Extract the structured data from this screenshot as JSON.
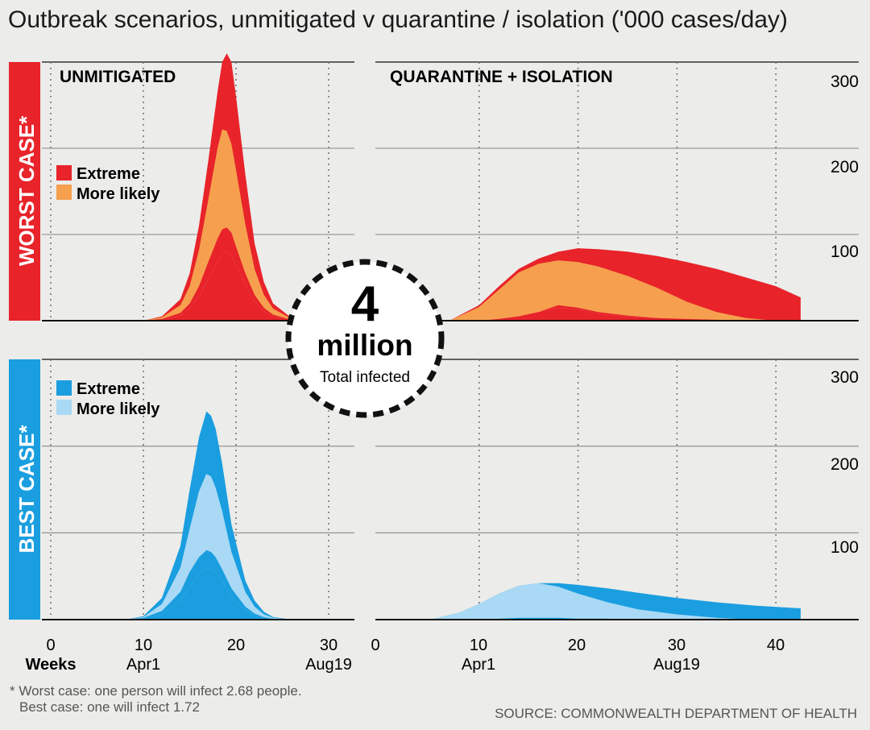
{
  "header": {
    "title": "Outbreak scenarios, unmitigated v quarantine / isolation ('000 cases/day)"
  },
  "rows": {
    "worst": {
      "label": "WORST CASE*",
      "color": "#e8232a"
    },
    "best": {
      "label": "BEST CASE*",
      "color": "#1a9ee0"
    }
  },
  "legend": {
    "worst": [
      {
        "label": "Extreme",
        "color": "#e8232a"
      },
      {
        "label": "More likely",
        "color": "#f6a04f"
      }
    ],
    "best": [
      {
        "label": "Extreme",
        "color": "#1a9ee0"
      },
      {
        "label": "More likely",
        "color": "#a9d9f4"
      }
    ]
  },
  "badge": {
    "number": "4",
    "unit": "million",
    "caption": "Total infected"
  },
  "axes": {
    "weeks_label": "Weeks",
    "left_x_ticks": [
      "0",
      "10",
      "20",
      "30"
    ],
    "right_x_ticks": [
      "0",
      "10",
      "20",
      "30",
      "40"
    ],
    "left_date_labels": [
      "Apr1",
      "Aug19"
    ],
    "right_date_labels": [
      "Apr1",
      "Aug19"
    ],
    "y_ticks": [
      "100",
      "200",
      "300"
    ]
  },
  "footnote": {
    "line1": "* Worst case: one person will infect 2.68 people.",
    "line2": "Best case: one will infect 1.72"
  },
  "source": "SOURCE: COMMONWEALTH DEPARTMENT OF HEALTH",
  "chart_data": [
    {
      "type": "area",
      "title": "UNMITIGATED",
      "row": "WORST CASE*",
      "xlabel": "Weeks",
      "ylim": [
        0,
        300
      ],
      "x": [
        10,
        12,
        14,
        15,
        16,
        17,
        18,
        18.5,
        19,
        19.5,
        20,
        21,
        22,
        23,
        24,
        26,
        28
      ],
      "series": [
        {
          "name": "Extreme",
          "upper": [
            0,
            5,
            25,
            55,
            110,
            185,
            265,
            300,
            310,
            300,
            260,
            170,
            90,
            45,
            20,
            3,
            0
          ],
          "lower": [
            0,
            1,
            6,
            14,
            28,
            48,
            68,
            78,
            80,
            76,
            64,
            42,
            22,
            11,
            5,
            1,
            0
          ]
        },
        {
          "name": "More likely",
          "upper": [
            0,
            4,
            18,
            40,
            82,
            140,
            200,
            222,
            220,
            205,
            175,
            112,
            60,
            30,
            14,
            2,
            0
          ],
          "lower": [
            0,
            2,
            9,
            20,
            40,
            68,
            95,
            106,
            108,
            102,
            86,
            55,
            30,
            15,
            7,
            1,
            0
          ]
        }
      ]
    },
    {
      "type": "area",
      "title": "QUARANTINE + ISOLATION",
      "row": "WORST CASE*",
      "xlabel": "Weeks",
      "ylim": [
        0,
        300
      ],
      "x": [
        7,
        10,
        12,
        14,
        16,
        18,
        20,
        22,
        25,
        28,
        31,
        34,
        37,
        40,
        42.5
      ],
      "series": [
        {
          "name": "Extreme",
          "upper": [
            0,
            18,
            40,
            60,
            72,
            80,
            84,
            83,
            80,
            75,
            68,
            60,
            50,
            40,
            27
          ],
          "lower": [
            0,
            0,
            2,
            5,
            10,
            15,
            13,
            8,
            5,
            3,
            2,
            1,
            0,
            0,
            0
          ]
        },
        {
          "name": "More likely",
          "upper": [
            0,
            16,
            36,
            56,
            66,
            70,
            68,
            63,
            52,
            38,
            22,
            10,
            3,
            0,
            0
          ],
          "lower": [
            0,
            0,
            2,
            5,
            10,
            18,
            15,
            10,
            6,
            3,
            1,
            0,
            0,
            0,
            0
          ]
        }
      ]
    },
    {
      "type": "area",
      "title": "UNMITIGATED",
      "row": "BEST CASE*",
      "xlabel": "Weeks",
      "ylim": [
        0,
        300
      ],
      "x": [
        8,
        10,
        12,
        14,
        15,
        16,
        16.8,
        17.3,
        17.8,
        18.5,
        19.5,
        21,
        22,
        23,
        24,
        26
      ],
      "series": [
        {
          "name": "Extreme",
          "upper": [
            0,
            4,
            25,
            85,
            150,
            210,
            240,
            235,
            220,
            180,
            110,
            45,
            22,
            9,
            3,
            0
          ],
          "lower": [
            0,
            1,
            6,
            22,
            38,
            52,
            60,
            58,
            55,
            44,
            26,
            10,
            5,
            2,
            1,
            0
          ]
        },
        {
          "name": "More likely",
          "upper": [
            0,
            3,
            18,
            60,
            105,
            148,
            168,
            165,
            152,
            125,
            78,
            32,
            15,
            6,
            2,
            0
          ],
          "lower": [
            0,
            2,
            10,
            32,
            55,
            72,
            80,
            78,
            72,
            58,
            36,
            15,
            7,
            3,
            1,
            0
          ]
        }
      ]
    },
    {
      "type": "area",
      "title": "",
      "row": "BEST CASE*",
      "xlabel": "Weeks",
      "ylim": [
        0,
        300
      ],
      "x": [
        5,
        8,
        10,
        12,
        14,
        16,
        18,
        20,
        23,
        26,
        30,
        34,
        38,
        42.5
      ],
      "series": [
        {
          "name": "Extreme",
          "upper": [
            0,
            8,
            18,
            30,
            39,
            42,
            42,
            40,
            36,
            31,
            25,
            20,
            16,
            13
          ],
          "lower": [
            0,
            0,
            0,
            1,
            2,
            2,
            2,
            1,
            1,
            0,
            0,
            0,
            0,
            0
          ]
        },
        {
          "name": "More likely",
          "upper": [
            0,
            8,
            18,
            30,
            39,
            42,
            38,
            30,
            20,
            12,
            6,
            2,
            0,
            0
          ],
          "lower": [
            0,
            0,
            0,
            1,
            2,
            2,
            2,
            1,
            1,
            0,
            0,
            0,
            0,
            0
          ]
        }
      ]
    }
  ]
}
